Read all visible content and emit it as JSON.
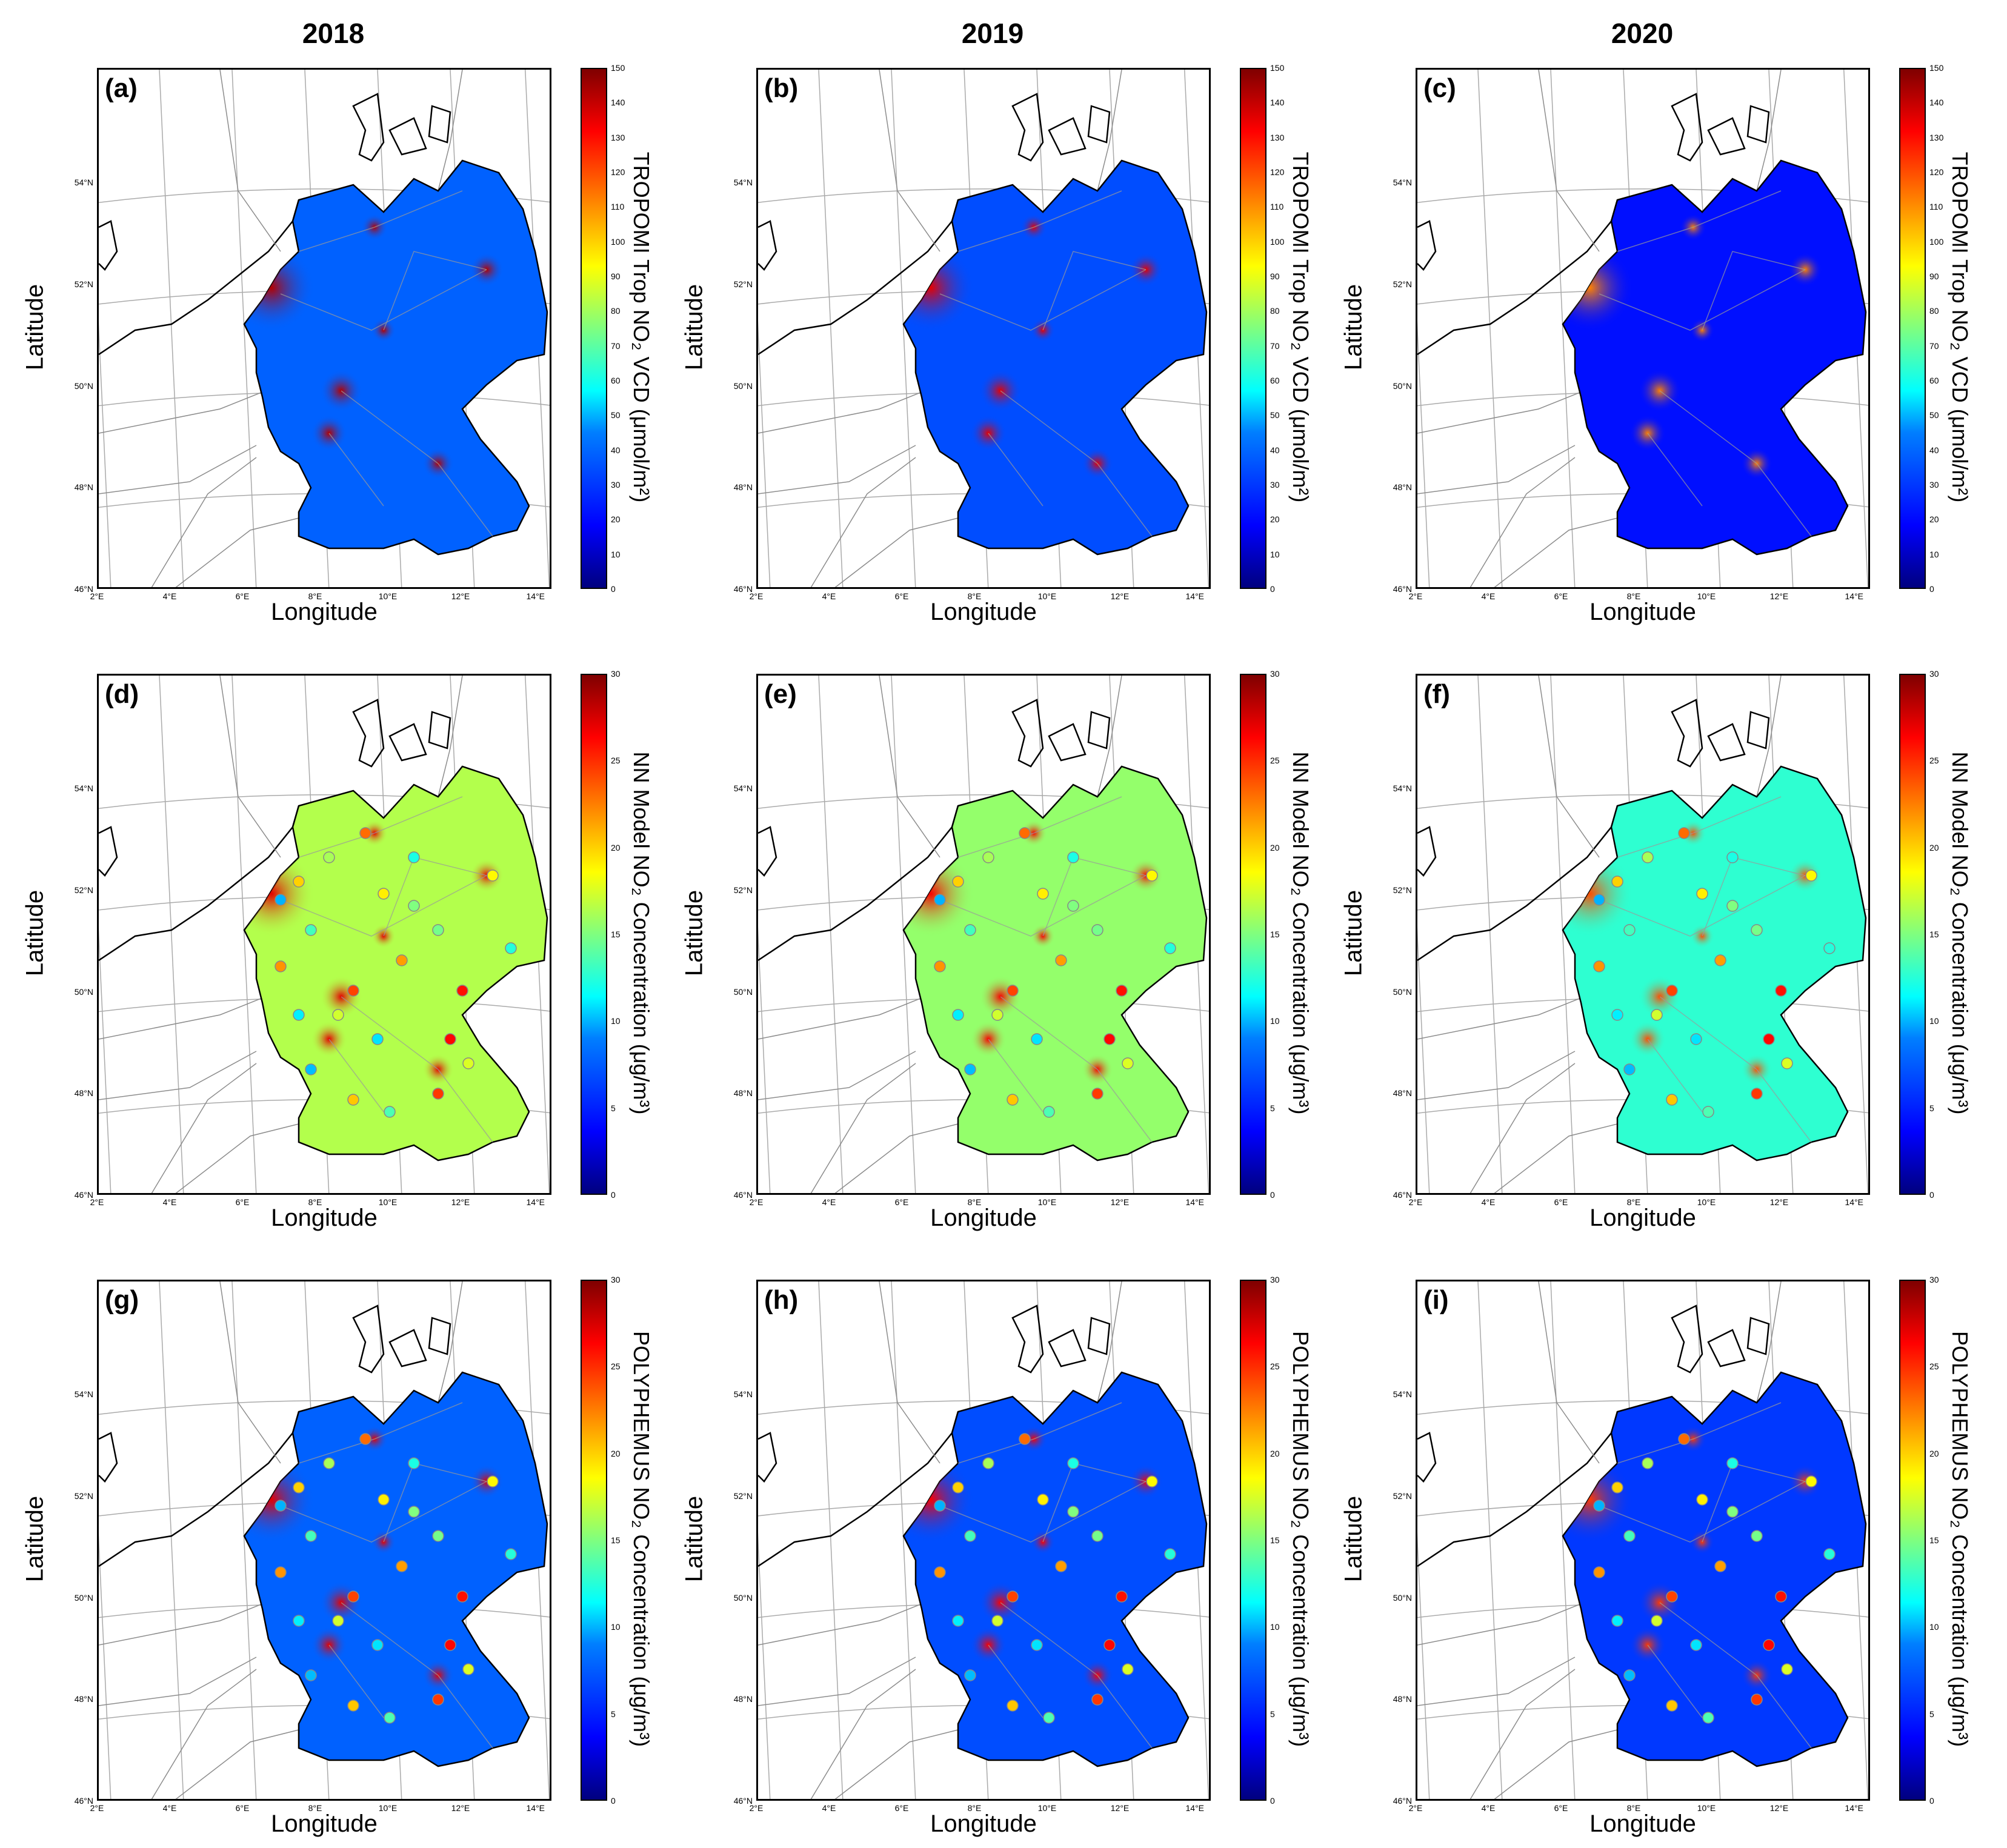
{
  "column_titles": [
    "2018",
    "2019",
    "2020"
  ],
  "axis_labels": {
    "x": "Longitude",
    "y": "Latitude"
  },
  "lat_ticks": [
    "46°N",
    "48°N",
    "50°N",
    "52°N",
    "54°N"
  ],
  "lon_ticks": [
    "2°E",
    "4°E",
    "6°E",
    "8°E",
    "10°E",
    "12°E",
    "14°E"
  ],
  "colors": {
    "low": "#00007f",
    "mid": "#7fff7f",
    "high": "#7f0000",
    "outline": "#000000",
    "roads": "#8c8c8c"
  },
  "rows": [
    {
      "colorbar_label": "TROPOMI Trop NO₂ VCD (μmol/m²)",
      "colorbar_range": [
        0,
        150
      ],
      "colorbar_ticks": [
        "0",
        "10",
        "20",
        "30",
        "40",
        "50",
        "60",
        "70",
        "80",
        "90",
        "100",
        "110",
        "120",
        "130",
        "140",
        "150"
      ],
      "panels": [
        {
          "label": "(a)",
          "year": "2018",
          "mean_level": 0.22,
          "hotspot_level": 0.95
        },
        {
          "label": "(b)",
          "year": "2019",
          "mean_level": 0.2,
          "hotspot_level": 0.9
        },
        {
          "label": "(c)",
          "year": "2020",
          "mean_level": 0.14,
          "hotspot_level": 0.75
        }
      ]
    },
    {
      "colorbar_label": "NN Model NO₂ Concentration (μg/m³)",
      "colorbar_range": [
        0,
        30
      ],
      "colorbar_ticks": [
        "0",
        "5",
        "10",
        "15",
        "20",
        "25",
        "30"
      ],
      "panels": [
        {
          "label": "(d)",
          "year": "2018",
          "mean_level": 0.55,
          "hotspot_level": 0.9
        },
        {
          "label": "(e)",
          "year": "2019",
          "mean_level": 0.52,
          "hotspot_level": 0.88
        },
        {
          "label": "(f)",
          "year": "2020",
          "mean_level": 0.42,
          "hotspot_level": 0.8
        }
      ]
    },
    {
      "colorbar_label": "POLYPHEMUS NO₂ Concentration (μg/m³)",
      "colorbar_range": [
        0,
        30
      ],
      "colorbar_ticks": [
        "0",
        "5",
        "10",
        "15",
        "20",
        "25",
        "30"
      ],
      "panels": [
        {
          "label": "(g)",
          "year": "2018",
          "mean_level": 0.22,
          "hotspot_level": 0.9
        },
        {
          "label": "(h)",
          "year": "2019",
          "mean_level": 0.2,
          "hotspot_level": 0.88
        },
        {
          "label": "(i)",
          "year": "2020",
          "mean_level": 0.18,
          "hotspot_level": 0.82
        }
      ]
    }
  ]
}
